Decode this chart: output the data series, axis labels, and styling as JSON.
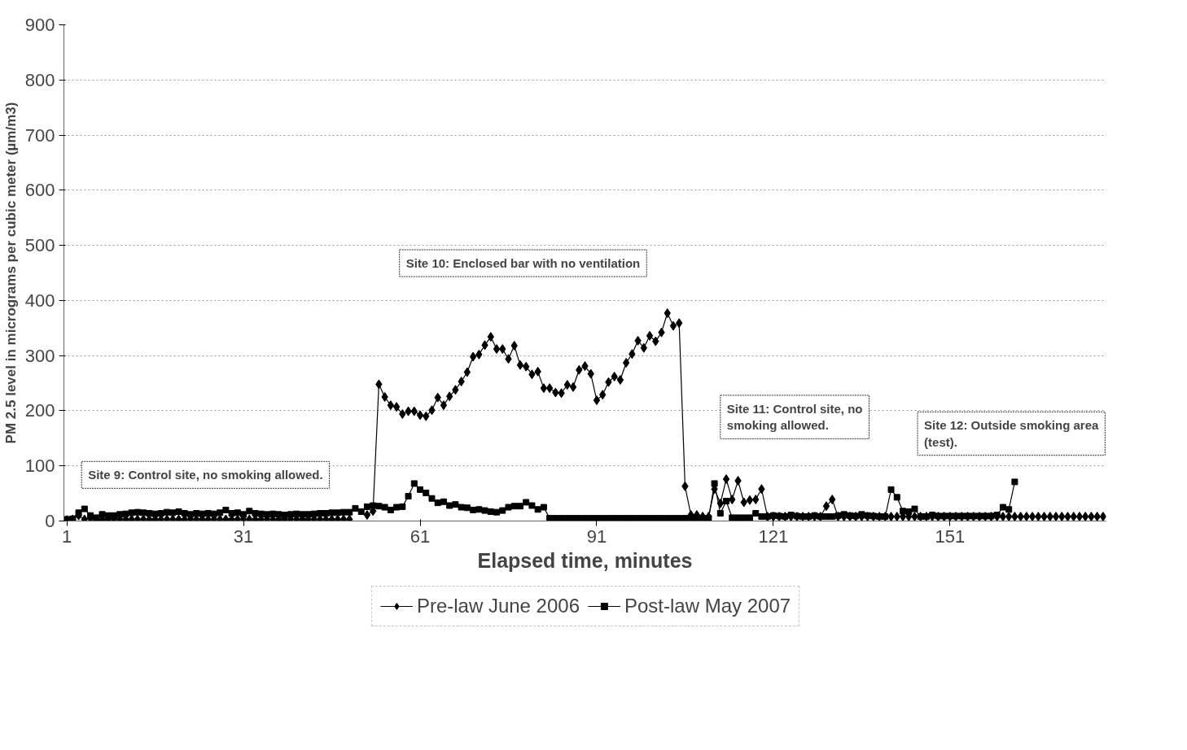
{
  "chart_data": {
    "type": "line",
    "xlabel": "Elapsed time, minutes",
    "ylabel": "PM 2.5 level in micrograms per cubic meter (µm/m3)",
    "annotations": [
      "Site 9: Control site, no smoking allowed.",
      "Site 10: Enclosed bar with no ventilation",
      "Site 11: Control site, no smoking allowed.",
      "Site 12: Outside smoking area (test)."
    ],
    "x": [
      1,
      2,
      3,
      4,
      5,
      6,
      7,
      8,
      9,
      10,
      11,
      12,
      13,
      14,
      15,
      16,
      17,
      18,
      19,
      20,
      21,
      22,
      23,
      24,
      25,
      26,
      27,
      28,
      29,
      30,
      31,
      32,
      33,
      34,
      35,
      36,
      37,
      38,
      39,
      40,
      41,
      42,
      43,
      44,
      45,
      46,
      47,
      48,
      49,
      50,
      51,
      52,
      53,
      54,
      55,
      56,
      57,
      58,
      59,
      60,
      61,
      62,
      63,
      64,
      65,
      66,
      67,
      68,
      69,
      70,
      71,
      72,
      73,
      74,
      75,
      76,
      77,
      78,
      79,
      80,
      81,
      82,
      83,
      84,
      85,
      86,
      87,
      88,
      89,
      90,
      91,
      92,
      93,
      94,
      95,
      96,
      97,
      98,
      99,
      100,
      101,
      102,
      103,
      104,
      105,
      106,
      107,
      108,
      109,
      110,
      111,
      112,
      113,
      114,
      115,
      116,
      117,
      118,
      119,
      120,
      121,
      122,
      123,
      124,
      125,
      126,
      127,
      128,
      129,
      130,
      131,
      132,
      133,
      134,
      135,
      136,
      137,
      138,
      139,
      140,
      141,
      142,
      143,
      144,
      145,
      146,
      147,
      148,
      149,
      150,
      151,
      152,
      153,
      154,
      155,
      156,
      157,
      158,
      159,
      160,
      161,
      162,
      163,
      164,
      165,
      166,
      167,
      168,
      169,
      170,
      171,
      172,
      173,
      174,
      175,
      176,
      177
    ],
    "series": [
      {
        "name": "Pre-law June 2006",
        "color": "#000000",
        "marker": "diamond",
        "values": [
          2,
          3,
          10,
          3,
          5,
          3,
          3,
          3,
          3,
          3,
          3,
          3,
          3,
          3,
          3,
          3,
          3,
          3,
          3,
          3,
          3,
          3,
          3,
          3,
          3,
          3,
          3,
          3,
          3,
          3,
          3,
          3,
          3,
          3,
          3,
          3,
          3,
          3,
          3,
          3,
          3,
          3,
          3,
          3,
          3,
          3,
          3,
          3,
          3,
          null,
          null,
          11,
          18,
          248,
          225,
          210,
          207,
          194,
          199,
          199,
          192,
          190,
          201,
          224,
          210,
          226,
          238,
          253,
          270,
          298,
          302,
          319,
          334,
          312,
          312,
          294,
          318,
          283,
          280,
          266,
          271,
          241,
          241,
          233,
          232,
          247,
          243,
          274,
          281,
          267,
          219,
          229,
          252,
          262,
          256,
          287,
          303,
          327,
          314,
          336,
          326,
          342,
          377,
          354,
          359,
          63,
          11,
          11,
          8,
          8,
          58,
          32,
          76,
          39,
          73,
          34,
          38,
          39,
          58,
          8,
          8,
          8,
          8,
          8,
          8,
          8,
          8,
          8,
          8,
          27,
          39,
          8,
          8,
          8,
          8,
          8,
          8,
          8,
          8,
          8,
          8,
          8,
          8,
          8,
          8,
          8,
          8,
          8,
          8,
          8,
          8,
          8,
          8,
          8,
          8,
          8,
          8,
          8,
          8,
          8,
          8,
          8,
          8,
          8,
          8,
          8,
          8,
          8,
          8,
          8,
          8,
          8,
          8,
          8,
          8,
          8,
          8
        ]
      },
      {
        "name": "Post-law May 2007",
        "color": "#000000",
        "marker": "square",
        "values": [
          3,
          4,
          15,
          22,
          10,
          6,
          12,
          10,
          10,
          12,
          13,
          15,
          16,
          15,
          14,
          13,
          14,
          16,
          15,
          17,
          14,
          12,
          14,
          13,
          14,
          13,
          15,
          20,
          14,
          15,
          12,
          18,
          14,
          13,
          12,
          13,
          12,
          11,
          12,
          13,
          12,
          12,
          13,
          14,
          14,
          15,
          15,
          16,
          16,
          23,
          17,
          26,
          28,
          27,
          25,
          20,
          25,
          26,
          45,
          68,
          57,
          51,
          41,
          33,
          35,
          28,
          30,
          25,
          24,
          20,
          21,
          19,
          17,
          16,
          19,
          25,
          27,
          27,
          34,
          28,
          21,
          25,
          5,
          5,
          5,
          5,
          5,
          5,
          5,
          5,
          5,
          5,
          5,
          5,
          5,
          5,
          5,
          5,
          5,
          5,
          5,
          5,
          5,
          5,
          5,
          5,
          5,
          5,
          5,
          5,
          68,
          14,
          36,
          6,
          6,
          6,
          6,
          14,
          8,
          8,
          10,
          9,
          8,
          11,
          9,
          8,
          8,
          10,
          8,
          8,
          8,
          10,
          12,
          10,
          9,
          12,
          10,
          9,
          8,
          8,
          57,
          43,
          18,
          17,
          22,
          8,
          8,
          11,
          9,
          9,
          9,
          9,
          9,
          9,
          9,
          9,
          9,
          9,
          11,
          25,
          21,
          71,
          null,
          null,
          null,
          null,
          null,
          null,
          null,
          null,
          null,
          null,
          null,
          null,
          null,
          null,
          null
        ]
      }
    ],
    "xlim": [
      0.5,
      177.5
    ],
    "xticks": [
      1,
      31,
      61,
      91,
      121,
      151
    ],
    "ylim": [
      0,
      900
    ],
    "yticks": [
      0,
      100,
      200,
      300,
      400,
      500,
      600,
      700,
      800,
      900
    ],
    "grid": "y",
    "legend": "bottom",
    "line_style": "solid"
  }
}
